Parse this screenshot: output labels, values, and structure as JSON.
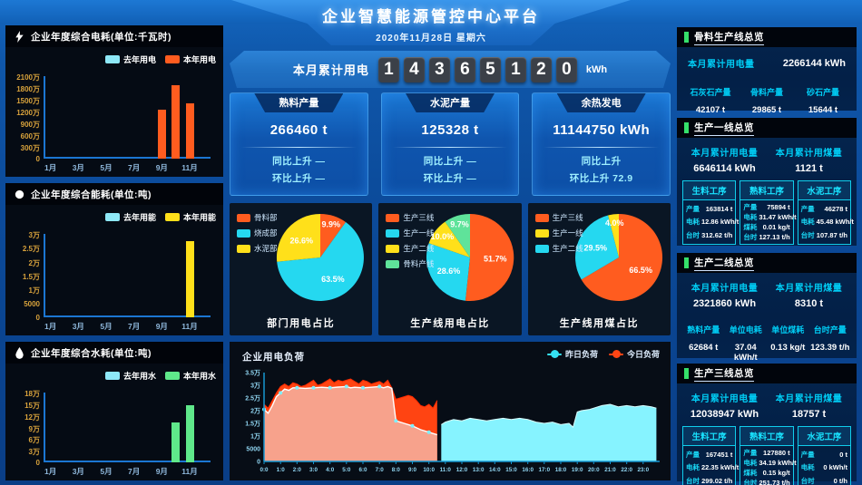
{
  "header": {
    "title": "企业智慧能源管控中心平台",
    "date": "2020年11月28日 星期六"
  },
  "counter": {
    "label": "本月累计用电",
    "value": "14365120",
    "unit": "kWh"
  },
  "stat_cards": [
    {
      "title": "熟料产量",
      "value": "266460 t",
      "rows": [
        "同比上升 —",
        "环比上升 —"
      ]
    },
    {
      "title": "水泥产量",
      "value": "125328 t",
      "rows": [
        "同比上升 —",
        "环比上升 —"
      ]
    },
    {
      "title": "余热发电",
      "value": "11144750 kWh",
      "rows": [
        "同比上升",
        "环比上升 72.9"
      ]
    }
  ],
  "chart_data": [
    {
      "id": "yearly-electricity",
      "type": "bar",
      "title": "企业年度综合电耗(单位:千瓦时)",
      "ymax": 21000000,
      "y_ticks": [
        "0",
        "300万",
        "600万",
        "900万",
        "1200万",
        "1500万",
        "1800万",
        "2100万"
      ],
      "categories": [
        "1月",
        "2月",
        "3月",
        "4月",
        "5月",
        "6月",
        "7月",
        "8月",
        "9月",
        "10月",
        "11月",
        "12月"
      ],
      "x_ticks": [
        "1月",
        "3月",
        "5月",
        "7月",
        "9月",
        "11月"
      ],
      "legend": [
        {
          "name": "去年用电",
          "color": "#8ee8f7"
        },
        {
          "name": "本年用电",
          "color": "#ff5c1f"
        }
      ],
      "series": [
        {
          "name": "去年用电",
          "color": "#8ee8f7",
          "values": [
            0,
            0,
            0,
            0,
            0,
            0,
            0,
            0,
            0,
            0,
            0,
            0
          ]
        },
        {
          "name": "本年用电",
          "color": "#ff5c1f",
          "values": [
            0,
            0,
            0,
            0,
            0,
            0,
            0,
            0,
            12400000,
            18700000,
            14200000,
            0
          ]
        }
      ]
    },
    {
      "id": "yearly-energy",
      "type": "bar",
      "title": "企业年度综合能耗(单位:吨)",
      "ymax": 30000,
      "y_ticks": [
        "0",
        "5000",
        "1万",
        "1.5万",
        "2万",
        "2.5万",
        "3万"
      ],
      "categories": [
        "1月",
        "2月",
        "3月",
        "4月",
        "5月",
        "6月",
        "7月",
        "8月",
        "9月",
        "10月",
        "11月",
        "12月"
      ],
      "x_ticks": [
        "1月",
        "3月",
        "5月",
        "7月",
        "9月",
        "11月"
      ],
      "legend": [
        {
          "name": "去年用能",
          "color": "#8ee8f7"
        },
        {
          "name": "本年用能",
          "color": "#ffe01a"
        }
      ],
      "series": [
        {
          "name": "去年用能",
          "color": "#8ee8f7",
          "values": [
            0,
            0,
            0,
            0,
            0,
            0,
            0,
            0,
            0,
            0,
            0,
            0
          ]
        },
        {
          "name": "本年用能",
          "color": "#ffe01a",
          "values": [
            0,
            0,
            0,
            0,
            0,
            0,
            0,
            0,
            0,
            0,
            27500,
            0
          ]
        }
      ]
    },
    {
      "id": "yearly-water",
      "type": "bar",
      "title": "企业年度综合水耗(单位:吨)",
      "ymax": 180000,
      "y_ticks": [
        "0",
        "3万",
        "6万",
        "9万",
        "12万",
        "15万",
        "18万"
      ],
      "categories": [
        "1月",
        "2月",
        "3月",
        "4月",
        "5月",
        "6月",
        "7月",
        "8月",
        "9月",
        "10月",
        "11月",
        "12月"
      ],
      "x_ticks": [
        "1月",
        "3月",
        "5月",
        "7月",
        "9月",
        "11月"
      ],
      "legend": [
        {
          "name": "去年用水",
          "color": "#8ee8f7"
        },
        {
          "name": "本年用水",
          "color": "#5fe88a"
        }
      ],
      "series": [
        {
          "name": "去年用水",
          "color": "#8ee8f7",
          "values": [
            0,
            0,
            0,
            0,
            0,
            0,
            0,
            0,
            0,
            0,
            0,
            0
          ]
        },
        {
          "name": "本年用水",
          "color": "#5fe88a",
          "values": [
            0,
            0,
            0,
            0,
            0,
            0,
            0,
            0,
            0,
            102000,
            148000,
            0
          ]
        }
      ]
    },
    {
      "id": "dept-power-share",
      "type": "pie",
      "title": "部门用电占比",
      "unit": "%",
      "legend": [
        "骨料部",
        "烧成部",
        "水泥部"
      ],
      "slices": [
        {
          "name": "骨料部",
          "value": 9.9,
          "color": "#ff5c1f"
        },
        {
          "name": "烧成部",
          "value": 63.5,
          "color": "#25d8f0"
        },
        {
          "name": "水泥部",
          "value": 26.6,
          "color": "#ffe01a"
        }
      ]
    },
    {
      "id": "line-power-share",
      "type": "pie",
      "title": "生产线用电占比",
      "unit": "%",
      "legend": [
        "生产三线",
        "生产一线",
        "生产二线",
        "骨料产线"
      ],
      "slices": [
        {
          "name": "生产三线",
          "value": 51.7,
          "color": "#ff5c1f"
        },
        {
          "name": "生产一线",
          "value": 28.6,
          "color": "#25d8f0"
        },
        {
          "name": "生产二线",
          "value": 10.0,
          "color": "#ffe01a"
        },
        {
          "name": "骨料产线",
          "value": 9.7,
          "color": "#5fe39a"
        }
      ]
    },
    {
      "id": "line-coal-share",
      "type": "pie",
      "title": "生产线用煤占比",
      "unit": "%",
      "legend": [
        "生产三线",
        "生产一线",
        "生产二线"
      ],
      "slices": [
        {
          "name": "生产三线",
          "value": 66.5,
          "color": "#ff5c1f"
        },
        {
          "name": "生产二线",
          "value": 29.5,
          "color": "#25d8f0"
        },
        {
          "name": "生产一线",
          "value": 4.0,
          "color": "#ffe01a"
        }
      ]
    },
    {
      "id": "power-load",
      "type": "area",
      "title": "企业用电负荷",
      "unit": "万kW",
      "ymax": 3.5,
      "y_ticks": [
        "0",
        "5000",
        "1万",
        "1.5万",
        "2万",
        "2.5万",
        "3万",
        "3.5万"
      ],
      "x_ticks": [
        "0:0",
        "1:0",
        "2:0",
        "3:0",
        "4:0",
        "5:0",
        "6:0",
        "7:0",
        "8:0",
        "9:0",
        "10:0",
        "11:0",
        "12:0",
        "13:0",
        "14:0",
        "15:0",
        "16:0",
        "17:0",
        "18:0",
        "19:0",
        "20:0",
        "21:0",
        "22:0",
        "23:0"
      ],
      "today_end_hour": 10.5,
      "legend": [
        {
          "name": "昨日负荷",
          "color": "#35e0f2"
        },
        {
          "name": "今日负荷",
          "color": "#ff4514"
        }
      ],
      "series": [
        {
          "name": "昨日负荷",
          "x": [
            0,
            0.25,
            0.5,
            0.75,
            1,
            1.25,
            1.5,
            1.75,
            2,
            2.5,
            3,
            3.5,
            4,
            4.5,
            5,
            5.25,
            5.5,
            6,
            6.5,
            7,
            7.25,
            7.5,
            7.75,
            8,
            8.5,
            9,
            9.5,
            10,
            10.25,
            10.5,
            10.75,
            11,
            11.5,
            12,
            12.5,
            13,
            13.5,
            14,
            14.5,
            15,
            15.5,
            16,
            16.5,
            17,
            17.5,
            18,
            18.5,
            18.75,
            19,
            19.25,
            19.75,
            20,
            20.5,
            21,
            21.5,
            22,
            22.5,
            23,
            23.5,
            23.8
          ],
          "values": [
            2.05,
            1.9,
            2.2,
            2.55,
            2.7,
            2.85,
            2.8,
            2.9,
            2.9,
            2.88,
            2.9,
            2.92,
            2.9,
            2.93,
            2.95,
            2.9,
            2.92,
            2.9,
            2.92,
            2.95,
            2.9,
            2.95,
            2.88,
            1.6,
            1.5,
            1.4,
            1.25,
            1.15,
            1.1,
            1.05,
            1.45,
            1.55,
            1.65,
            1.6,
            1.7,
            1.65,
            1.6,
            1.65,
            1.7,
            1.65,
            1.7,
            1.65,
            1.55,
            1.5,
            1.55,
            1.45,
            1.5,
            1.35,
            1.95,
            2.0,
            2.05,
            2.1,
            2.2,
            2.25,
            2.15,
            2.2,
            2.15,
            2.2,
            2.15,
            2.1
          ]
        },
        {
          "name": "今日负荷",
          "x": [
            0,
            0.25,
            0.5,
            0.75,
            1,
            1.25,
            1.5,
            1.75,
            2,
            2.25,
            2.5,
            2.75,
            3,
            3.25,
            3.5,
            3.75,
            4,
            4.25,
            4.5,
            4.75,
            5,
            5.25,
            5.5,
            5.75,
            6,
            6.25,
            6.5,
            6.75,
            7,
            7.25,
            7.5,
            7.75,
            8,
            8.25,
            8.5,
            8.75,
            9,
            9.25,
            9.5,
            9.75,
            10,
            10.25,
            10.5
          ],
          "values": [
            2.25,
            2.1,
            2.4,
            2.7,
            2.95,
            3.05,
            2.95,
            3.1,
            3.05,
            2.95,
            3.0,
            3.1,
            3.2,
            3.0,
            3.05,
            3.15,
            3.25,
            3.1,
            3.2,
            3.15,
            3.2,
            3.25,
            3.15,
            3.05,
            3.2,
            3.15,
            3.05,
            3.1,
            3.15,
            3.05,
            3.2,
            2.9,
            2.45,
            2.5,
            2.55,
            2.6,
            2.55,
            2.4,
            2.2,
            2.15,
            2.25,
            2.1,
            2.4
          ]
        }
      ]
    }
  ],
  "right_panels": [
    {
      "title": "骨料生产线总览",
      "meters": [
        {
          "label": "本月累计用电量",
          "value": "2266144 kWh"
        }
      ],
      "stats": [
        {
          "label": "石灰石产量",
          "value": "42107 t"
        },
        {
          "label": "骨料产量",
          "value": "29865 t"
        },
        {
          "label": "砂石产量",
          "value": "15644 t"
        }
      ]
    },
    {
      "title": "生产一线总览",
      "meters": [
        {
          "label": "本月累计用电量",
          "value": "6646114 kWh"
        },
        {
          "label": "本月累计用煤量",
          "value": "1121 t"
        }
      ],
      "boxes": [
        {
          "title": "生料工序",
          "rows": [
            [
              "产量",
              "163814 t"
            ],
            [
              "电耗",
              "12.86 kWh/t"
            ],
            [
              "台时",
              "312.62 t/h"
            ]
          ]
        },
        {
          "title": "熟料工序",
          "rows": [
            [
              "产量",
              "75894 t"
            ],
            [
              "电耗",
              "31.47 kWh/t"
            ],
            [
              "煤耗",
              "0.01 kg/t"
            ],
            [
              "台时",
              "127.13 t/h"
            ]
          ]
        },
        {
          "title": "水泥工序",
          "rows": [
            [
              "产量",
              "46278 t"
            ],
            [
              "电耗",
              "45.48 kWh/t"
            ],
            [
              "台时",
              "107.87 t/h"
            ]
          ]
        }
      ]
    },
    {
      "title": "生产二线总览",
      "meters": [
        {
          "label": "本月累计用电量",
          "value": "2321860 kWh"
        },
        {
          "label": "本月累计用煤量",
          "value": "8310 t"
        }
      ],
      "stats": [
        {
          "label": "熟料产量",
          "value": "62684 t"
        },
        {
          "label": "单位电耗",
          "value": "37.04 kWh/t"
        },
        {
          "label": "单位煤耗",
          "value": "0.13 kg/t"
        },
        {
          "label": "台时产量",
          "value": "123.39 t/h"
        }
      ]
    },
    {
      "title": "生产三线总览",
      "meters": [
        {
          "label": "本月累计用电量",
          "value": "12038947 kWh"
        },
        {
          "label": "本月累计用煤量",
          "value": "18757 t"
        }
      ],
      "boxes": [
        {
          "title": "生料工序",
          "rows": [
            [
              "产量",
              "167451 t"
            ],
            [
              "电耗",
              "22.35 kWh/t"
            ],
            [
              "台时",
              "299.02 t/h"
            ]
          ]
        },
        {
          "title": "熟料工序",
          "rows": [
            [
              "产量",
              "127880 t"
            ],
            [
              "电耗",
              "34.19 kWh/t"
            ],
            [
              "煤耗",
              "0.15 kg/t"
            ],
            [
              "台时",
              "251.73 t/h"
            ]
          ]
        },
        {
          "title": "水泥工序",
          "rows": [
            [
              "产量",
              "0 t"
            ],
            [
              "电耗",
              "0 kWh/t"
            ],
            [
              "台时",
              "0 t/h"
            ]
          ]
        }
      ]
    }
  ]
}
